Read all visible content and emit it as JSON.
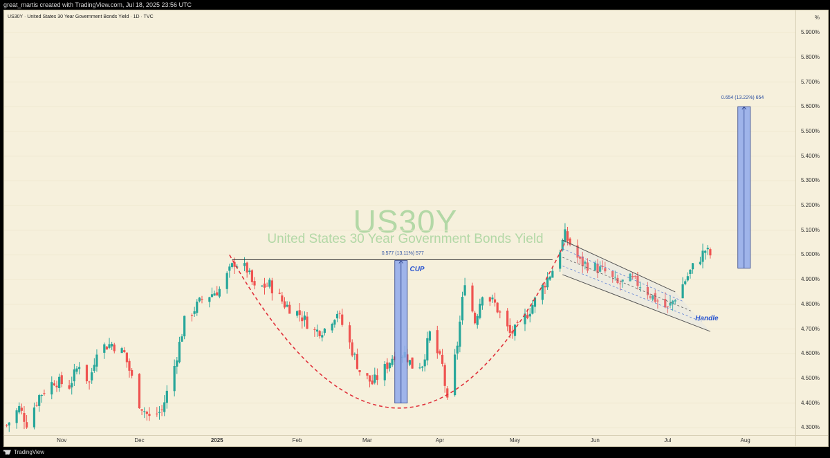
{
  "header": {
    "caption": "great_martis created with TradingView.com, Jul 18, 2025 23:56 UTC"
  },
  "chart_header": {
    "symbol_line": "US30Y · United States 30 Year Government Bonds Yield · 1D · TVC",
    "unit": "%"
  },
  "watermark": {
    "symbol": "US30Y",
    "name": "United States 30 Year Government Bonds Yield"
  },
  "footer": {
    "brand": "TradingView"
  },
  "colors": {
    "up": "#26a69a",
    "down": "#ef5350",
    "accent_blue": "#2a55d0",
    "range_fill": "#8fa9ec",
    "cup_curve": "#e0303a"
  },
  "chart_data": {
    "type": "candlestick",
    "title": "US30Y · United States 30 Year Government Bonds Yield · 1D · TVC",
    "yunit": "%",
    "ylim": [
      4.27,
      5.99
    ],
    "y_ticks": [
      "5.900%",
      "5.800%",
      "5.700%",
      "5.600%",
      "5.500%",
      "5.400%",
      "5.300%",
      "5.200%",
      "5.100%",
      "5.000%",
      "4.900%",
      "4.800%",
      "4.700%",
      "4.600%",
      "4.500%",
      "4.400%",
      "4.300%"
    ],
    "y_tick_values": [
      5.9,
      5.8,
      5.7,
      5.6,
      5.5,
      5.4,
      5.3,
      5.2,
      5.1,
      5.0,
      4.9,
      4.8,
      4.7,
      4.6,
      4.5,
      4.4,
      4.3
    ],
    "x_range": [
      "2024-10-09",
      "2025-08-21"
    ],
    "x_ticks": [
      {
        "label": "Nov",
        "date": "2024-11-01"
      },
      {
        "label": "Dec",
        "date": "2024-12-02"
      },
      {
        "label": "2025",
        "date": "2025-01-02",
        "bold": true
      },
      {
        "label": "Feb",
        "date": "2025-02-03"
      },
      {
        "label": "Mar",
        "date": "2025-03-03"
      },
      {
        "label": "Apr",
        "date": "2025-04-01"
      },
      {
        "label": "May",
        "date": "2025-05-01"
      },
      {
        "label": "Jun",
        "date": "2025-06-02"
      },
      {
        "label": "Jul",
        "date": "2025-07-01"
      },
      {
        "label": "Aug",
        "date": "2025-08-01"
      }
    ],
    "path_anchors": [
      [
        "2024-10-10",
        4.31
      ],
      [
        "2024-10-15",
        4.38
      ],
      [
        "2024-10-18",
        4.32
      ],
      [
        "2024-10-23",
        4.43
      ],
      [
        "2024-10-29",
        4.49
      ],
      [
        "2024-11-04",
        4.47
      ],
      [
        "2024-11-08",
        4.56
      ],
      [
        "2024-11-12",
        4.48
      ],
      [
        "2024-11-15",
        4.62
      ],
      [
        "2024-11-21",
        4.64
      ],
      [
        "2024-11-26",
        4.6
      ],
      [
        "2024-12-02",
        4.4
      ],
      [
        "2024-12-06",
        4.34
      ],
      [
        "2024-12-11",
        4.37
      ],
      [
        "2024-12-16",
        4.55
      ],
      [
        "2024-12-20",
        4.73
      ],
      [
        "2024-12-27",
        4.82
      ],
      [
        "2025-01-03",
        4.86
      ],
      [
        "2025-01-09",
        4.97
      ],
      [
        "2025-01-14",
        4.94
      ],
      [
        "2025-01-17",
        4.86
      ],
      [
        "2025-01-23",
        4.88
      ],
      [
        "2025-01-29",
        4.8
      ],
      [
        "2025-02-04",
        4.76
      ],
      [
        "2025-02-10",
        4.69
      ],
      [
        "2025-02-14",
        4.7
      ],
      [
        "2025-02-19",
        4.77
      ],
      [
        "2025-02-24",
        4.64
      ],
      [
        "2025-02-28",
        4.53
      ],
      [
        "2025-03-05",
        4.48
      ],
      [
        "2025-03-10",
        4.54
      ],
      [
        "2025-03-14",
        4.6
      ],
      [
        "2025-03-18",
        4.6
      ],
      [
        "2025-03-21",
        4.55
      ],
      [
        "2025-03-25",
        4.56
      ],
      [
        "2025-03-28",
        4.68
      ],
      [
        "2025-04-02",
        4.55
      ],
      [
        "2025-04-04",
        4.4
      ],
      [
        "2025-04-08",
        4.64
      ],
      [
        "2025-04-11",
        4.9
      ],
      [
        "2025-04-15",
        4.73
      ],
      [
        "2025-04-18",
        4.85
      ],
      [
        "2025-04-23",
        4.8
      ],
      [
        "2025-04-29",
        4.68
      ],
      [
        "2025-05-02",
        4.7
      ],
      [
        "2025-05-07",
        4.78
      ],
      [
        "2025-05-12",
        4.87
      ],
      [
        "2025-05-16",
        4.94
      ],
      [
        "2025-05-21",
        5.08
      ],
      [
        "2025-05-27",
        4.97
      ],
      [
        "2025-06-02",
        4.95
      ],
      [
        "2025-06-06",
        4.93
      ],
      [
        "2025-06-11",
        4.88
      ],
      [
        "2025-06-16",
        4.9
      ],
      [
        "2025-06-20",
        4.88
      ],
      [
        "2025-06-25",
        4.83
      ],
      [
        "2025-07-01",
        4.78
      ],
      [
        "2025-07-07",
        4.88
      ],
      [
        "2025-07-11",
        4.95
      ],
      [
        "2025-07-14",
        4.99
      ],
      [
        "2025-07-16",
        5.02
      ],
      [
        "2025-07-18",
        5.0
      ]
    ],
    "annotations": {
      "resistance_line": {
        "from": "2025-01-08",
        "to": "2025-05-16",
        "y": 4.98
      },
      "cup_range": {
        "x0": "2025-03-14",
        "x1": "2025-03-19",
        "y0": 4.4,
        "y1": 4.977,
        "label": "0.577 (13.11%) 577"
      },
      "target_range": {
        "x0": "2025-07-29",
        "x1": "2025-08-03",
        "y0": 4.946,
        "y1": 5.6,
        "label": "0.654 (13.22%) 654"
      },
      "cup_curve": {
        "from": [
          "2025-01-07",
          5.0
        ],
        "bottom": [
          "2025-03-19",
          4.38
        ],
        "to": [
          "2025-05-21",
          5.05
        ]
      },
      "handle_channel": {
        "upper": [
          [
            "2025-05-20",
            5.06
          ],
          [
            "2025-07-04",
            4.85
          ]
        ],
        "lower": [
          [
            "2025-05-20",
            4.92
          ],
          [
            "2025-07-18",
            4.69
          ]
        ]
      },
      "labels": [
        {
          "text": "CUP",
          "x": "2025-03-20",
          "y": 4.94
        },
        {
          "text": "Handle",
          "x": "2025-07-12",
          "y": 4.74
        }
      ]
    }
  }
}
